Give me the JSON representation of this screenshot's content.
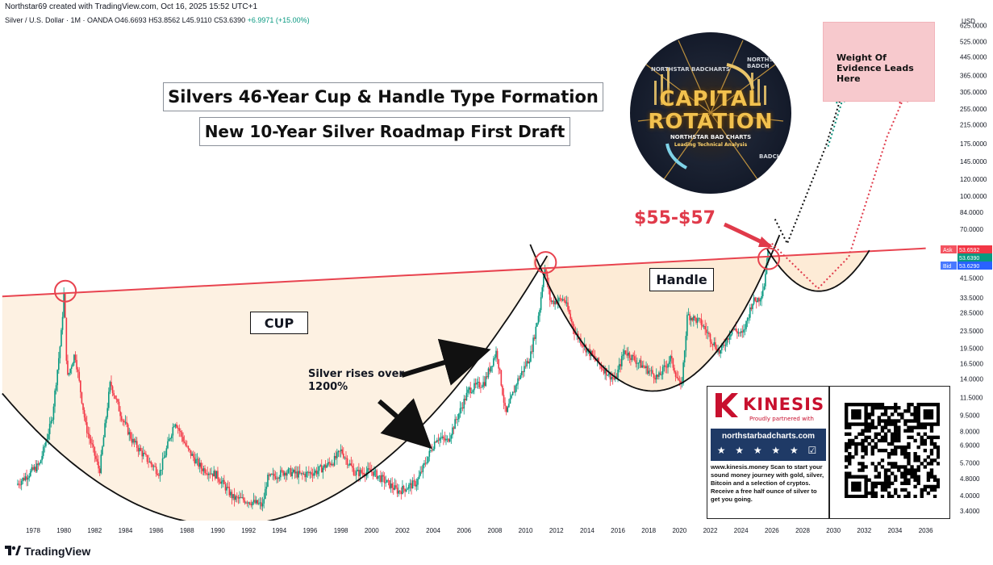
{
  "header": {
    "created_by": "Northstar69 created with TradingView.com, Oct 16, 2025 15:52 UTC+1",
    "symbol": "Silver / U.S. Dollar · 1M · OANDA",
    "o": "O46.6693",
    "h": "H53.8562",
    "l": "L45.9110",
    "c": "C53.6390",
    "change": "+6.9971 (+15.00%)"
  },
  "annotations": {
    "title1": "Silvers 46-Year Cup & Handle Type Formation",
    "title2": "New 10-Year Silver Roadmap First Draft",
    "cup": "CUP",
    "handle": "Handle",
    "silver_rises": "Silver rises over 1200%",
    "price_target": "$55-$57",
    "evidence": "Weight Of Evidence Leads Here"
  },
  "logo": {
    "line1": "CAPITAL",
    "line2": "ROTATION",
    "line3": "NORTHSTAR BAD CHARTS",
    "line4": "Leading Technical Analysis",
    "corner_tl": "NORTHSTAR BADCHARTS",
    "corner_tr": "NORTHSTAR BADCH",
    "corner_br": "BADCH"
  },
  "promo": {
    "brand": "KINESIS",
    "partnered": "Proudly partnered with",
    "site": "northstarbadcharts.com",
    "stars": "★ ★ ★ ★ ★ ☑",
    "text": "www.kinesis.money Scan to start your sound money journey with gold, silver, Bitcoin and a selection of cryptos. Receive a free half ounce of silver to get you going."
  },
  "price_tags": {
    "ask_label": "Ask",
    "ask": "53.6592",
    "last": "53.6390",
    "bid_label": "Bid",
    "bid": "53.6290"
  },
  "footer": {
    "brand": "TradingView"
  },
  "colors": {
    "resistance": "#e8434f",
    "cup_fill": "#fdf1e2",
    "up": "#089981",
    "down": "#f23645",
    "projection_green": "#0b8f7a",
    "projection_red": "#e03a4a"
  },
  "chart_data": {
    "type": "candlestick",
    "title": "Silver / U.S. Dollar · 1M · OANDA",
    "y_axis_unit": "USD",
    "y_scale": "log",
    "y_ticks": [
      "625.0000",
      "525.0000",
      "445.0000",
      "365.0000",
      "305.0000",
      "255.0000",
      "215.0000",
      "175.0000",
      "145.0000",
      "120.0000",
      "100.0000",
      "84.0000",
      "70.0000",
      "41.5000",
      "33.5000",
      "28.5000",
      "23.5000",
      "19.5000",
      "16.5000",
      "14.0000",
      "11.5000",
      "9.5000",
      "8.0000",
      "6.9000",
      "5.7000",
      "4.8000",
      "4.0000",
      "3.4000"
    ],
    "x_ticks": [
      "1978",
      "1980",
      "1982",
      "1984",
      "1986",
      "1988",
      "1990",
      "1992",
      "1994",
      "1996",
      "1998",
      "2000",
      "2002",
      "2004",
      "2006",
      "2008",
      "2010",
      "2012",
      "2014",
      "2016",
      "2018",
      "2020",
      "2022",
      "2024",
      "2026",
      "2028",
      "2030",
      "2032",
      "2034",
      "2036"
    ],
    "price_path": [
      [
        1977.0,
        4.5
      ],
      [
        1978.5,
        5.6
      ],
      [
        1979.3,
        9.0
      ],
      [
        1979.9,
        22.0
      ],
      [
        1980.1,
        36.0
      ],
      [
        1980.3,
        14.0
      ],
      [
        1980.8,
        18.5
      ],
      [
        1981.5,
        8.5
      ],
      [
        1982.4,
        5.2
      ],
      [
        1983.1,
        13.5
      ],
      [
        1983.8,
        9.5
      ],
      [
        1984.5,
        7.3
      ],
      [
        1985.4,
        6.0
      ],
      [
        1986.3,
        5.1
      ],
      [
        1987.3,
        9.0
      ],
      [
        1988.1,
        6.6
      ],
      [
        1989.0,
        5.4
      ],
      [
        1990.0,
        5.0
      ],
      [
        1991.1,
        3.9
      ],
      [
        1992.0,
        3.8
      ],
      [
        1993.0,
        3.6
      ],
      [
        1993.3,
        4.8
      ],
      [
        1994.5,
        5.2
      ],
      [
        1995.5,
        5.0
      ],
      [
        1996.5,
        5.2
      ],
      [
        1997.6,
        5.8
      ],
      [
        1998.1,
        6.5
      ],
      [
        1999.0,
        5.1
      ],
      [
        2000.1,
        5.2
      ],
      [
        2001.8,
        4.2
      ],
      [
        2003.0,
        4.6
      ],
      [
        2004.3,
        7.5
      ],
      [
        2005.0,
        7.2
      ],
      [
        2006.4,
        12.5
      ],
      [
        2007.4,
        13.5
      ],
      [
        2008.2,
        19.0
      ],
      [
        2008.8,
        9.5
      ],
      [
        2009.5,
        13.5
      ],
      [
        2010.4,
        18.0
      ],
      [
        2011.0,
        30.0
      ],
      [
        2011.3,
        47.0
      ],
      [
        2011.7,
        32.0
      ],
      [
        2012.6,
        33.0
      ],
      [
        2013.3,
        23.0
      ],
      [
        2014.0,
        19.5
      ],
      [
        2015.0,
        16.0
      ],
      [
        2015.9,
        13.8
      ],
      [
        2016.5,
        19.0
      ],
      [
        2017.5,
        16.5
      ],
      [
        2018.7,
        14.2
      ],
      [
        2019.5,
        17.5
      ],
      [
        2020.2,
        12.5
      ],
      [
        2020.6,
        28.0
      ],
      [
        2021.5,
        25.5
      ],
      [
        2022.7,
        18.5
      ],
      [
        2023.5,
        24.0
      ],
      [
        2024.2,
        22.5
      ],
      [
        2024.8,
        32.0
      ],
      [
        2025.3,
        33.5
      ],
      [
        2025.6,
        39.0
      ],
      [
        2025.79,
        53.6
      ]
    ],
    "resistance_line": {
      "from": [
        1976,
        34.0
      ],
      "to": [
        2036,
        57.0
      ]
    },
    "cup_curve_points": [
      [
        1976,
        12.0
      ],
      [
        1993.7,
        3.1
      ],
      [
        2011.5,
        54.0
      ]
    ],
    "handle_curve_points": [
      [
        2010.5,
        55.0
      ],
      [
        2017.5,
        12.5
      ],
      [
        2026.0,
        54.0
      ]
    ],
    "projected_handle": {
      "from": 2026.0,
      "bottom": [
        2029.0,
        36.0
      ],
      "to": 2032.3
    },
    "circled_highs": [
      [
        1980.1,
        36.0
      ],
      [
        2011.3,
        49.0
      ],
      [
        2025.8,
        51.0
      ]
    ],
    "projections": [
      {
        "name": "black/green dotted",
        "points": [
          [
            2026.2,
            78
          ],
          [
            2027.0,
            60
          ],
          [
            2029.5,
            170
          ],
          [
            2030.5,
            290
          ]
        ]
      },
      {
        "name": "red dotted",
        "points": [
          [
            2026.0,
            60
          ],
          [
            2029.0,
            37
          ],
          [
            2031.0,
            52
          ],
          [
            2033.5,
            190
          ],
          [
            2034.6,
            290
          ]
        ]
      }
    ],
    "last_price": 53.639
  }
}
